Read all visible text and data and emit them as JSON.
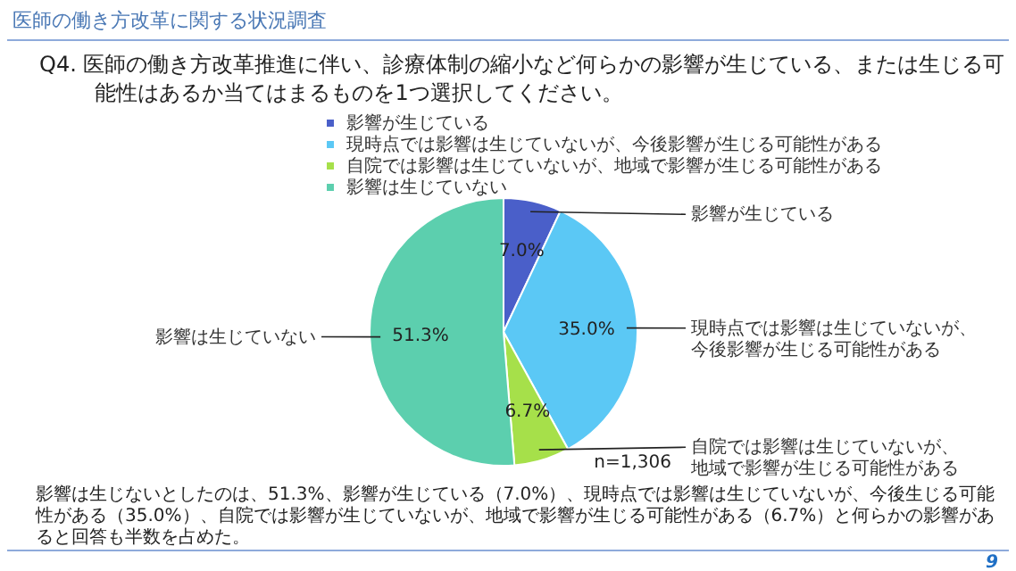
{
  "chart_data": {
    "type": "pie",
    "title": "医師の働き方改革に関する状況調査",
    "subtitle": "Q4.  医師の働き方改革推進に伴い、診療体制の縮小など何らかの影響が生じている、または生じる可能性はあるか当てはまるものを1つ選択してください。",
    "categories": [
      "影響が生じている",
      "現時点では影響は生じていないが、今後影響が生じる可能性がある",
      "自院では影響は生じていないが、地域で影響が生じる可能性がある",
      "影響は生じていない"
    ],
    "values": [
      7.0,
      35.0,
      6.7,
      51.3
    ],
    "colors": [
      "#4a5fc9",
      "#5bc8f5",
      "#a6e04a",
      "#5ccfae"
    ],
    "value_labels": [
      "7.0%",
      "35.0%",
      "6.7%",
      "51.3%"
    ],
    "legend": "top",
    "annotations": [
      "n=1,306",
      "影響は生じないとしたのは、51.3%、影響が生じている（7.0%）、現時点では影響は生じていないが、今後生じる可能性がある（35.0%）、自院では影響が生じていないが、地域で影響が生じる可能性がある（6.7%）と何らかの影響があると回答も半数を占めた。",
      "9"
    ]
  }
}
